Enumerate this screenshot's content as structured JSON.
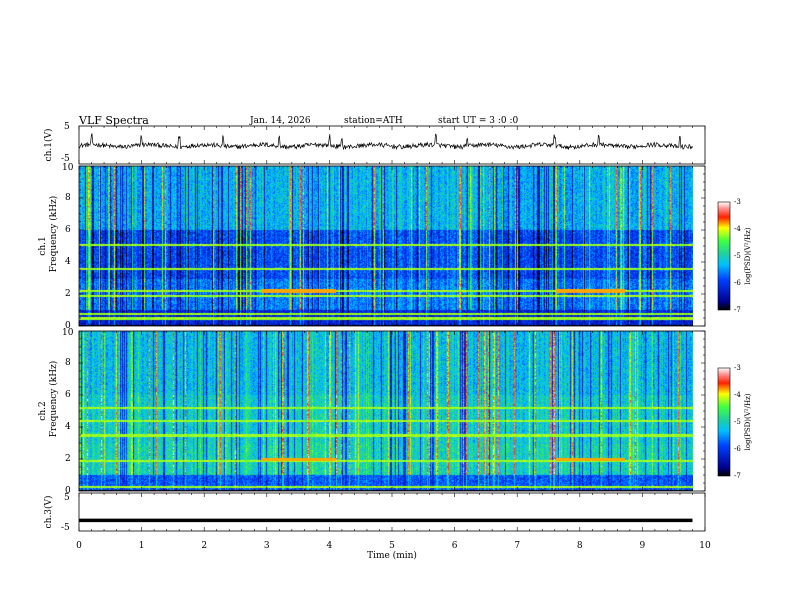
{
  "header": {
    "title": "VLF Spectra",
    "date": "Jan. 14, 2026",
    "station": "station=ATH",
    "start": "start UT =  3 :0 :0"
  },
  "chart_data": [
    {
      "type": "line",
      "name": "ch1-waveform",
      "ylabel": "ch.1(V)",
      "ylim": [
        -5,
        5
      ],
      "yticks": [
        "5",
        "-5"
      ],
      "trace_level": -0.2,
      "trace_noise": 0.6,
      "spike_times": [
        0.2,
        1.0,
        1.6,
        2.3,
        3.2,
        4.0,
        4.2,
        5.7,
        6.2,
        7.6,
        8.3,
        9.6
      ]
    },
    {
      "type": "heatmap",
      "name": "ch1-spectrogram",
      "ylabel_top": "ch.1",
      "ylabel": "Frequency (kHz)",
      "ylim": [
        0,
        10
      ],
      "yticks": [
        "0",
        "2",
        "4",
        "6",
        "8",
        "10"
      ],
      "colorbar": {
        "label": "log(PSD)(V²/Hz)",
        "range": [
          -7,
          -3
        ],
        "ticks": [
          "-3",
          "-4",
          "-5",
          "-6",
          "-7"
        ]
      },
      "tone_lines_khz": [
        0.5,
        0.8,
        1.9,
        2.2,
        3.6,
        5.1
      ],
      "bursts": [
        {
          "t0": 2.9,
          "t1": 4.1,
          "f": 2.2
        },
        {
          "t0": 7.6,
          "t1": 8.7,
          "f": 2.2
        }
      ]
    },
    {
      "type": "heatmap",
      "name": "ch2-spectrogram",
      "ylabel_top": "ch.2",
      "ylabel": "Frequency (kHz)",
      "ylim": [
        0,
        10
      ],
      "yticks": [
        "0",
        "2",
        "4",
        "6",
        "8",
        "10"
      ],
      "colorbar": {
        "label": "log(PSD)(V²/Hz)",
        "range": [
          -7,
          -3
        ],
        "ticks": [
          "-3",
          "-4",
          "-5",
          "-6",
          "-7"
        ]
      },
      "tone_lines_khz": [
        0.3,
        1.9,
        3.5,
        4.4,
        5.2
      ],
      "bursts": [
        {
          "t0": 2.9,
          "t1": 4.1,
          "f": 2.0
        },
        {
          "t0": 7.6,
          "t1": 8.7,
          "f": 2.0
        }
      ]
    },
    {
      "type": "line",
      "name": "ch3-waveform",
      "ylabel": "ch.3(V)",
      "ylim": [
        -5,
        5
      ],
      "yticks": [
        "5",
        "-5"
      ],
      "trace_level": -2.2
    }
  ],
  "x_axis": {
    "label": "Time (min)",
    "xlim": [
      0,
      10
    ],
    "ticks": [
      "0",
      "1",
      "2",
      "3",
      "4",
      "5",
      "6",
      "7",
      "8",
      "9",
      "10"
    ],
    "data_end": 9.8
  }
}
